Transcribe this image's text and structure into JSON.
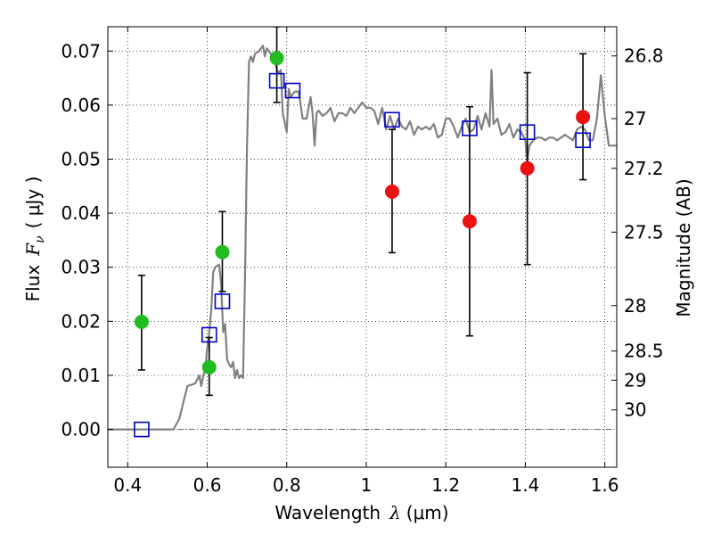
{
  "chart_data": {
    "type": "scatter",
    "title": "",
    "xlabel": "Wavelength",
    "xlabel_symbol": "λ",
    "xlabel_unit": "(μm)",
    "ylabel": "Flux",
    "ylabel_symbol": "F",
    "ylabel_subscript": "ν",
    "ylabel_unit": "( μJy )",
    "ylabel_right": "Magnitude (AB)",
    "xlim": [
      0.35,
      1.63
    ],
    "ylim": [
      -0.007,
      0.0745
    ],
    "grid": true,
    "x_ticks": [
      0.4,
      0.6,
      0.8,
      1.0,
      1.2,
      1.4,
      1.6
    ],
    "x_tick_labels": [
      "0.4",
      "0.6",
      "0.8",
      "1",
      "1.2",
      "1.4",
      "1.6"
    ],
    "y_ticks": [
      0.0,
      0.01,
      0.02,
      0.03,
      0.04,
      0.05,
      0.06,
      0.07
    ],
    "y_tick_labels": [
      "0.00",
      "0.01",
      "0.02",
      "0.03",
      "0.04",
      "0.05",
      "0.06",
      "0.07"
    ],
    "right_ticks": [
      {
        "flux": 0.0691,
        "label": "26.8"
      },
      {
        "flux": 0.0575,
        "label": "27"
      },
      {
        "flux": 0.0483,
        "label": "27.2"
      },
      {
        "flux": 0.0365,
        "label": "27.5"
      },
      {
        "flux": 0.0229,
        "label": "28"
      },
      {
        "flux": 0.0145,
        "label": "28.5"
      },
      {
        "flux": 0.0091,
        "label": "29"
      },
      {
        "flux": 0.0036,
        "label": "30"
      }
    ],
    "colors": {
      "model": "#808080",
      "green": "#22bb22",
      "red": "#ee1111",
      "blue": "#0000cc",
      "errorbar": "#000000"
    },
    "series": [
      {
        "name": "model spectrum",
        "kind": "line",
        "x": [
          0.35,
          0.5,
          0.515,
          0.53,
          0.55,
          0.57,
          0.58,
          0.585,
          0.59,
          0.595,
          0.6,
          0.605,
          0.61,
          0.615,
          0.62,
          0.63,
          0.635,
          0.64,
          0.645,
          0.65,
          0.655,
          0.66,
          0.665,
          0.67,
          0.675,
          0.68,
          0.685,
          0.69,
          0.695,
          0.7,
          0.705,
          0.71,
          0.715,
          0.72,
          0.73,
          0.74,
          0.745,
          0.75,
          0.76,
          0.77,
          0.775,
          0.78,
          0.785,
          0.79,
          0.8,
          0.805,
          0.81,
          0.82,
          0.83,
          0.84,
          0.85,
          0.86,
          0.865,
          0.87,
          0.875,
          0.88,
          0.89,
          0.9,
          0.91,
          0.92,
          0.93,
          0.94,
          0.95,
          0.96,
          0.97,
          0.98,
          0.99,
          1.0,
          1.01,
          1.02,
          1.03,
          1.04,
          1.05,
          1.06,
          1.07,
          1.08,
          1.09,
          1.1,
          1.11,
          1.12,
          1.13,
          1.14,
          1.15,
          1.16,
          1.17,
          1.18,
          1.19,
          1.2,
          1.21,
          1.22,
          1.23,
          1.24,
          1.25,
          1.26,
          1.27,
          1.28,
          1.29,
          1.3,
          1.31,
          1.315,
          1.32,
          1.33,
          1.34,
          1.35,
          1.36,
          1.37,
          1.38,
          1.39,
          1.4,
          1.405,
          1.41,
          1.42,
          1.43,
          1.44,
          1.45,
          1.46,
          1.47,
          1.48,
          1.49,
          1.5,
          1.51,
          1.52,
          1.53,
          1.54,
          1.55,
          1.56,
          1.57,
          1.58,
          1.59,
          1.6,
          1.61,
          1.63
        ],
        "y": [
          0.0,
          0.0,
          0.0,
          0.002,
          0.008,
          0.0085,
          0.01,
          0.008,
          0.01,
          0.011,
          0.015,
          0.018,
          0.022,
          0.029,
          0.03,
          0.0305,
          0.027,
          0.018,
          0.0195,
          0.013,
          0.012,
          0.0115,
          0.0125,
          0.0095,
          0.011,
          0.0095,
          0.01,
          0.0095,
          0.028,
          0.052,
          0.068,
          0.069,
          0.068,
          0.0695,
          0.07,
          0.071,
          0.069,
          0.0705,
          0.0695,
          0.0685,
          0.0665,
          0.066,
          0.0665,
          0.0585,
          0.055,
          0.063,
          0.0615,
          0.0625,
          0.0625,
          0.0575,
          0.0575,
          0.0615,
          0.0585,
          0.0525,
          0.0585,
          0.059,
          0.058,
          0.0585,
          0.0595,
          0.057,
          0.0585,
          0.0585,
          0.058,
          0.0595,
          0.0585,
          0.0595,
          0.0605,
          0.0595,
          0.0595,
          0.059,
          0.0565,
          0.0595,
          0.0555,
          0.058,
          0.0555,
          0.0575,
          0.056,
          0.0555,
          0.057,
          0.0545,
          0.056,
          0.0555,
          0.056,
          0.0555,
          0.0565,
          0.054,
          0.0545,
          0.0575,
          0.0575,
          0.056,
          0.054,
          0.056,
          0.0575,
          0.055,
          0.0555,
          0.058,
          0.0555,
          0.0585,
          0.056,
          0.0665,
          0.0565,
          0.0575,
          0.0545,
          0.055,
          0.0565,
          0.054,
          0.0555,
          0.055,
          0.0535,
          0.0495,
          0.0525,
          0.0535,
          0.054,
          0.054,
          0.0535,
          0.054,
          0.054,
          0.0535,
          0.054,
          0.0545,
          0.054,
          0.0535,
          0.0555,
          0.056,
          0.0555,
          0.0535,
          0.0535,
          0.0575,
          0.0655,
          0.058,
          0.0525,
          0.0525
        ]
      },
      {
        "name": "green points",
        "kind": "circle",
        "points": [
          {
            "x": 0.435,
            "y": 0.0199,
            "lo": 0.011,
            "hi": 0.0285
          },
          {
            "x": 0.605,
            "y": 0.0115,
            "lo": 0.0063,
            "hi": 0.017
          },
          {
            "x": 0.638,
            "y": 0.0328,
            "lo": 0.0255,
            "hi": 0.0403
          },
          {
            "x": 0.775,
            "y": 0.0687,
            "lo": 0.0605,
            "hi": 0.0745
          }
        ]
      },
      {
        "name": "red points",
        "kind": "circle",
        "points": [
          {
            "x": 1.065,
            "y": 0.044,
            "lo": 0.0327,
            "hi": 0.0555
          },
          {
            "x": 1.26,
            "y": 0.0385,
            "lo": 0.0173,
            "hi": 0.0597
          },
          {
            "x": 1.405,
            "y": 0.0483,
            "lo": 0.0305,
            "hi": 0.066
          },
          {
            "x": 1.545,
            "y": 0.0578,
            "lo": 0.0462,
            "hi": 0.0695
          }
        ]
      },
      {
        "name": "model photometry",
        "kind": "square",
        "points": [
          {
            "x": 0.435,
            "y": 0.0
          },
          {
            "x": 0.605,
            "y": 0.0175
          },
          {
            "x": 0.638,
            "y": 0.0237
          },
          {
            "x": 0.775,
            "y": 0.0645
          },
          {
            "x": 0.815,
            "y": 0.0627
          },
          {
            "x": 1.065,
            "y": 0.0573
          },
          {
            "x": 1.26,
            "y": 0.0557
          },
          {
            "x": 1.405,
            "y": 0.055
          },
          {
            "x": 1.545,
            "y": 0.0535
          }
        ]
      }
    ]
  }
}
